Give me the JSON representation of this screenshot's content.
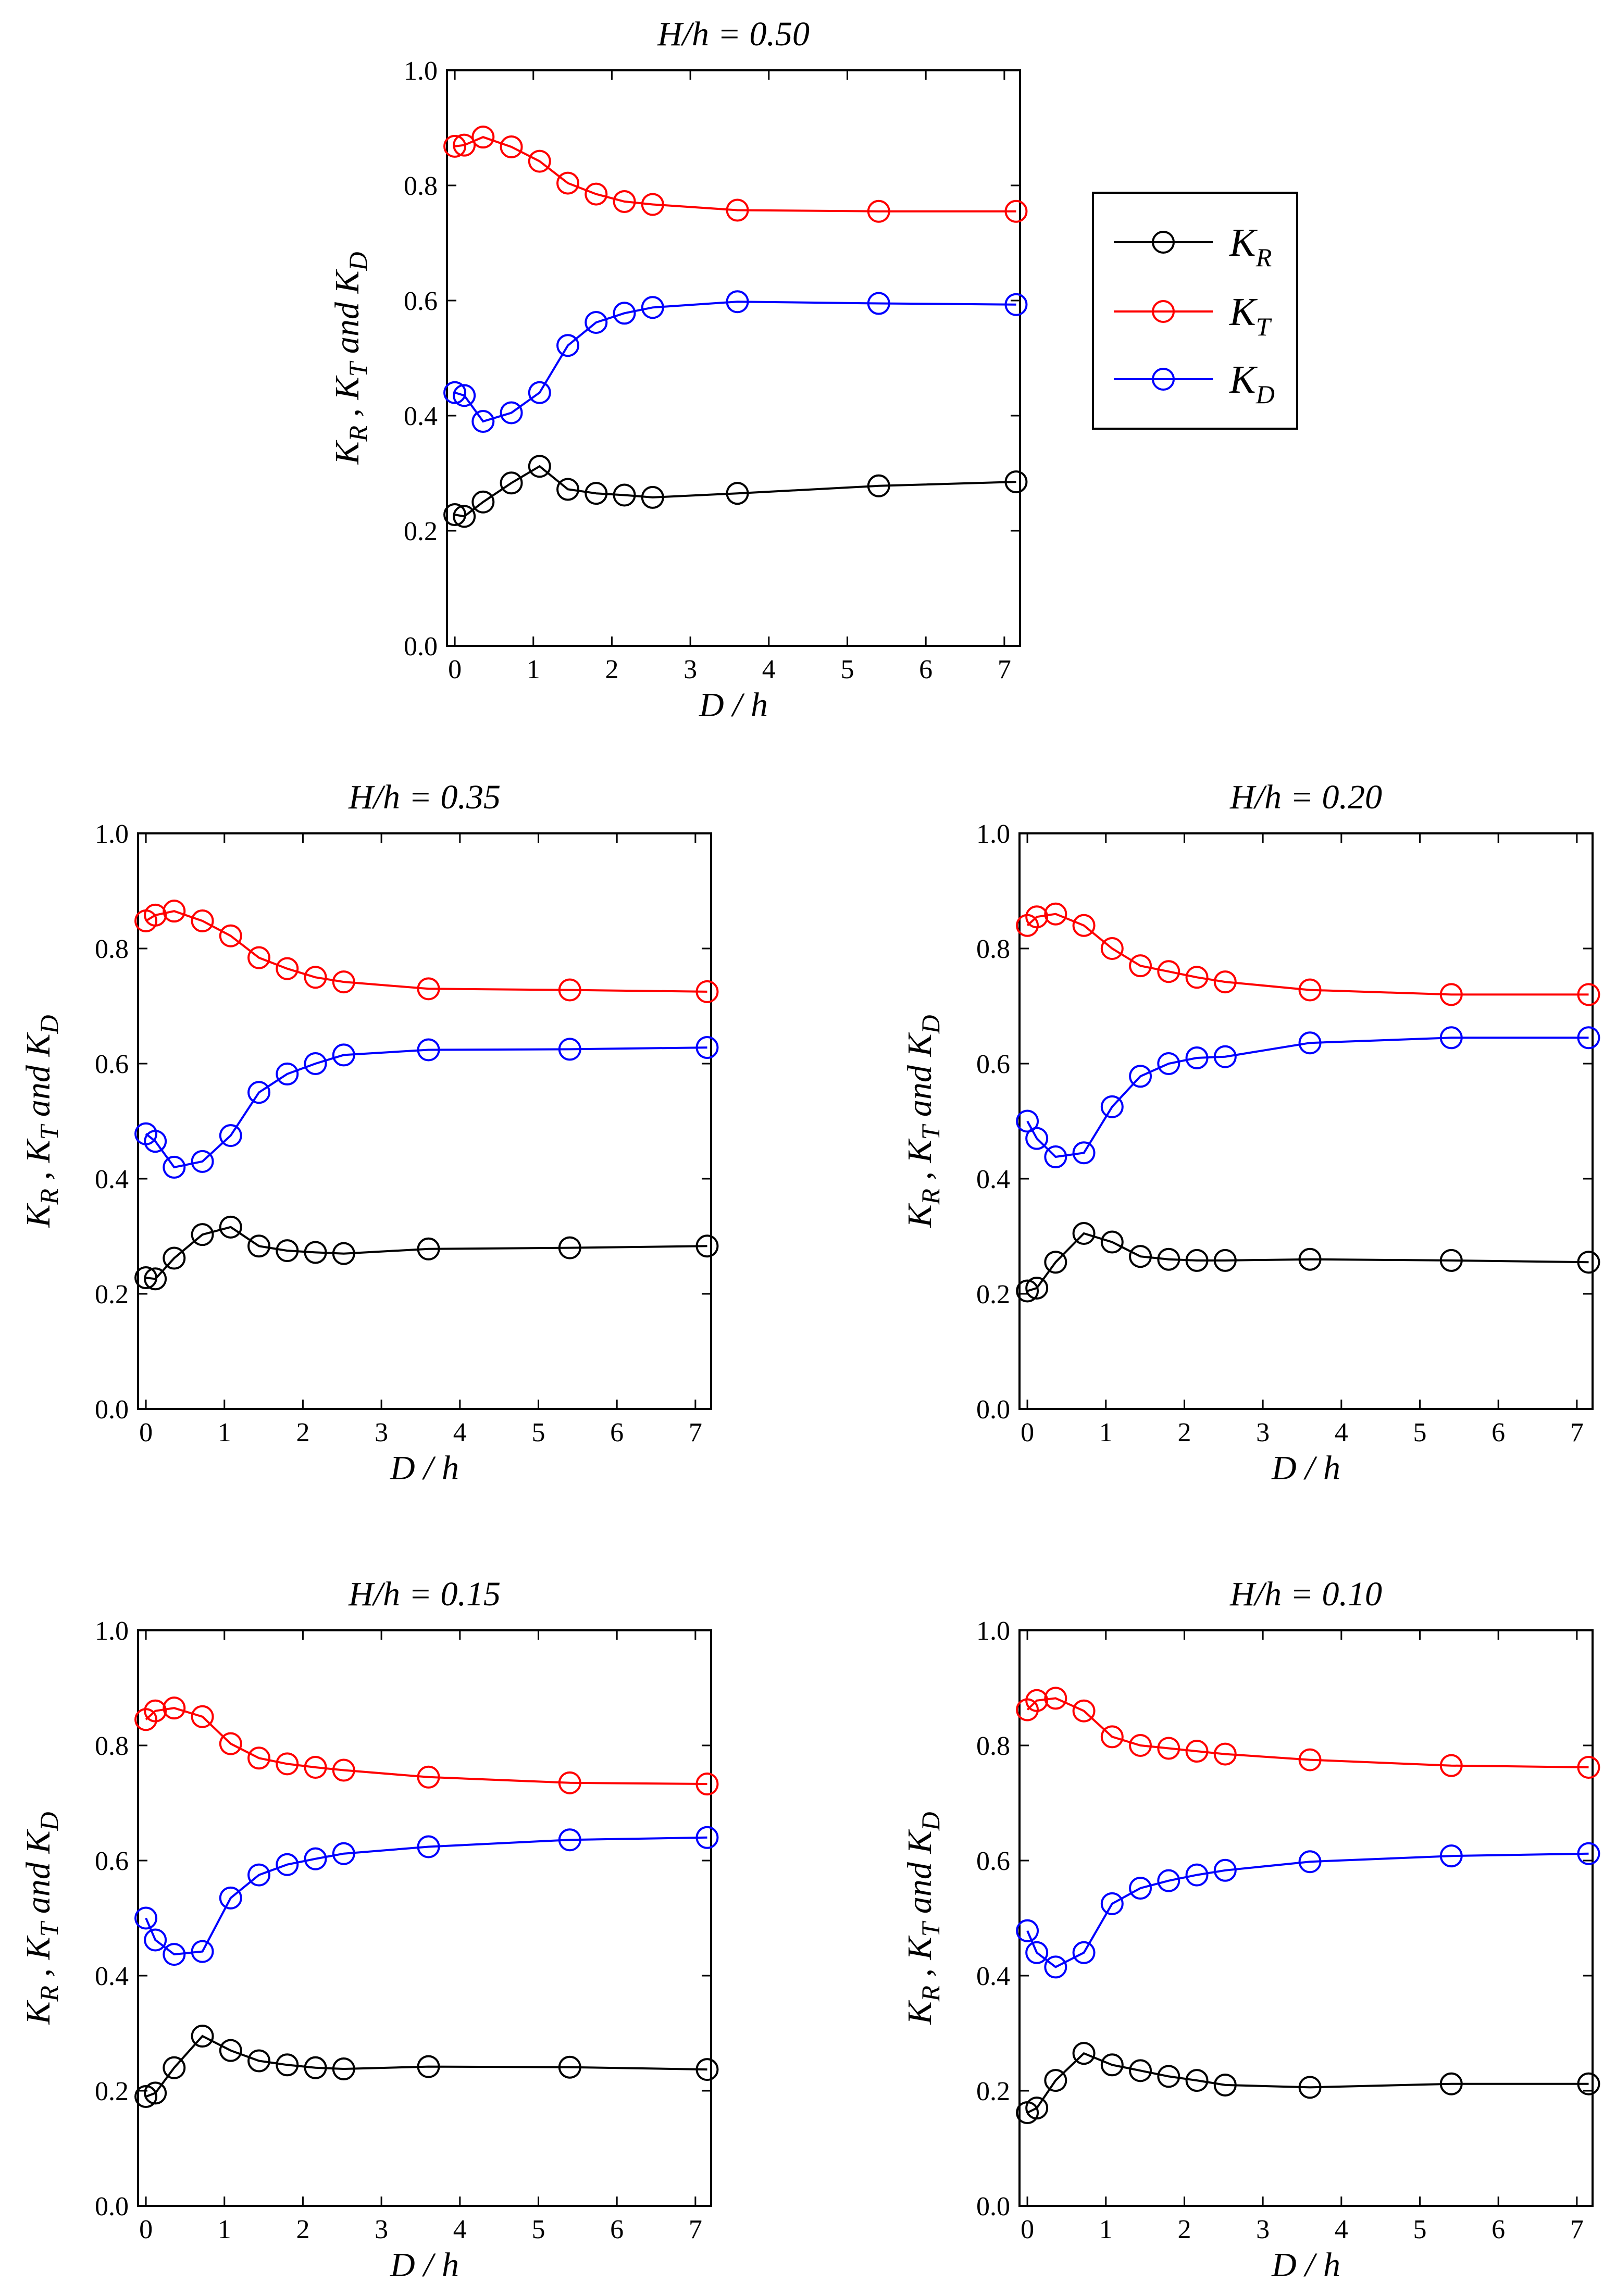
{
  "chart_data": [
    {
      "type": "line",
      "title": "H/h = 0.50",
      "xlabel": "D / h",
      "ylabel": "K_R , K_T and K_D",
      "xlim": [
        -0.1,
        7.2
      ],
      "ylim": [
        0,
        1
      ],
      "xticks": [
        0,
        1,
        2,
        3,
        4,
        5,
        6,
        7
      ],
      "yticks": [
        "0.0",
        "0.2",
        "0.4",
        "0.6",
        "0.8",
        "1.0"
      ],
      "x": [
        0,
        0.12,
        0.36,
        0.72,
        1.08,
        1.44,
        1.8,
        2.16,
        2.52,
        3.6,
        5.4,
        7.15
      ],
      "series": [
        {
          "name": "K_R",
          "color": "#000000",
          "values": [
            0.228,
            0.225,
            0.25,
            0.283,
            0.312,
            0.272,
            0.265,
            0.262,
            0.258,
            0.265,
            0.278,
            0.285
          ]
        },
        {
          "name": "K_T",
          "color": "#ff0000",
          "values": [
            0.868,
            0.87,
            0.884,
            0.867,
            0.842,
            0.804,
            0.785,
            0.772,
            0.767,
            0.757,
            0.755,
            0.755
          ]
        },
        {
          "name": "K_D",
          "color": "#0000ff",
          "values": [
            0.44,
            0.435,
            0.39,
            0.405,
            0.44,
            0.522,
            0.562,
            0.578,
            0.588,
            0.598,
            0.595,
            0.593
          ]
        }
      ]
    },
    {
      "type": "line",
      "title": "H/h = 0.35",
      "xlabel": "D / h",
      "ylabel": "K_R , K_T and K_D",
      "xlim": [
        -0.1,
        7.2
      ],
      "ylim": [
        0,
        1
      ],
      "xticks": [
        0,
        1,
        2,
        3,
        4,
        5,
        6,
        7
      ],
      "yticks": [
        "0.0",
        "0.2",
        "0.4",
        "0.6",
        "0.8",
        "1.0"
      ],
      "x": [
        0,
        0.12,
        0.36,
        0.72,
        1.08,
        1.44,
        1.8,
        2.16,
        2.52,
        3.6,
        5.4,
        7.15
      ],
      "series": [
        {
          "name": "K_R",
          "color": "#000000",
          "values": [
            0.228,
            0.226,
            0.262,
            0.303,
            0.316,
            0.283,
            0.275,
            0.272,
            0.27,
            0.278,
            0.28,
            0.283
          ]
        },
        {
          "name": "K_T",
          "color": "#ff0000",
          "values": [
            0.848,
            0.858,
            0.865,
            0.848,
            0.822,
            0.784,
            0.765,
            0.75,
            0.742,
            0.73,
            0.728,
            0.725
          ]
        },
        {
          "name": "K_D",
          "color": "#0000ff",
          "values": [
            0.478,
            0.465,
            0.42,
            0.43,
            0.475,
            0.55,
            0.582,
            0.6,
            0.615,
            0.624,
            0.625,
            0.628
          ]
        }
      ]
    },
    {
      "type": "line",
      "title": "H/h = 0.20",
      "xlabel": "D / h",
      "ylabel": "K_R , K_T and K_D",
      "xlim": [
        -0.1,
        7.2
      ],
      "ylim": [
        0,
        1
      ],
      "xticks": [
        0,
        1,
        2,
        3,
        4,
        5,
        6,
        7
      ],
      "yticks": [
        "0.0",
        "0.2",
        "0.4",
        "0.6",
        "0.8",
        "1.0"
      ],
      "x": [
        0,
        0.12,
        0.36,
        0.72,
        1.08,
        1.44,
        1.8,
        2.16,
        2.52,
        3.6,
        5.4,
        7.15
      ],
      "series": [
        {
          "name": "K_R",
          "color": "#000000",
          "values": [
            0.205,
            0.21,
            0.255,
            0.305,
            0.29,
            0.265,
            0.26,
            0.258,
            0.258,
            0.26,
            0.258,
            0.255
          ]
        },
        {
          "name": "K_T",
          "color": "#ff0000",
          "values": [
            0.84,
            0.855,
            0.86,
            0.84,
            0.8,
            0.77,
            0.76,
            0.75,
            0.742,
            0.728,
            0.72,
            0.72
          ]
        },
        {
          "name": "K_D",
          "color": "#0000ff",
          "values": [
            0.5,
            0.47,
            0.438,
            0.445,
            0.525,
            0.578,
            0.6,
            0.61,
            0.612,
            0.636,
            0.645,
            0.645
          ]
        }
      ]
    },
    {
      "type": "line",
      "title": "H/h = 0.15",
      "xlabel": "D / h",
      "ylabel": "K_R , K_T and K_D",
      "xlim": [
        -0.1,
        7.2
      ],
      "ylim": [
        0,
        1
      ],
      "xticks": [
        0,
        1,
        2,
        3,
        4,
        5,
        6,
        7
      ],
      "yticks": [
        "0.0",
        "0.2",
        "0.4",
        "0.6",
        "0.8",
        "1.0"
      ],
      "x": [
        0,
        0.12,
        0.36,
        0.72,
        1.08,
        1.44,
        1.8,
        2.16,
        2.52,
        3.6,
        5.4,
        7.15
      ],
      "series": [
        {
          "name": "K_R",
          "color": "#000000",
          "values": [
            0.19,
            0.196,
            0.24,
            0.295,
            0.27,
            0.252,
            0.245,
            0.24,
            0.238,
            0.242,
            0.241,
            0.237
          ]
        },
        {
          "name": "K_T",
          "color": "#ff0000",
          "values": [
            0.845,
            0.86,
            0.865,
            0.85,
            0.803,
            0.778,
            0.768,
            0.762,
            0.757,
            0.745,
            0.735,
            0.733
          ]
        },
        {
          "name": "K_D",
          "color": "#0000ff",
          "values": [
            0.5,
            0.462,
            0.437,
            0.442,
            0.535,
            0.575,
            0.593,
            0.603,
            0.612,
            0.624,
            0.636,
            0.64
          ]
        }
      ]
    },
    {
      "type": "line",
      "title": "H/h = 0.10",
      "xlabel": "D / h",
      "ylabel": "K_R , K_T and K_D",
      "xlim": [
        -0.1,
        7.2
      ],
      "ylim": [
        0,
        1
      ],
      "xticks": [
        0,
        1,
        2,
        3,
        4,
        5,
        6,
        7
      ],
      "yticks": [
        "0.0",
        "0.2",
        "0.4",
        "0.6",
        "0.8",
        "1.0"
      ],
      "x": [
        0,
        0.12,
        0.36,
        0.72,
        1.08,
        1.44,
        1.8,
        2.16,
        2.52,
        3.6,
        5.4,
        7.15
      ],
      "series": [
        {
          "name": "K_R",
          "color": "#000000",
          "values": [
            0.162,
            0.17,
            0.218,
            0.265,
            0.245,
            0.235,
            0.225,
            0.218,
            0.21,
            0.206,
            0.212,
            0.212
          ]
        },
        {
          "name": "K_T",
          "color": "#ff0000",
          "values": [
            0.862,
            0.878,
            0.882,
            0.86,
            0.815,
            0.8,
            0.795,
            0.79,
            0.785,
            0.775,
            0.765,
            0.762
          ]
        },
        {
          "name": "K_D",
          "color": "#0000ff",
          "values": [
            0.478,
            0.44,
            0.415,
            0.44,
            0.525,
            0.552,
            0.565,
            0.575,
            0.583,
            0.598,
            0.608,
            0.612
          ]
        }
      ]
    }
  ],
  "legend": {
    "entries": [
      {
        "base": "K",
        "sub": "R",
        "color": "#000000"
      },
      {
        "base": "K",
        "sub": "T",
        "color": "#ff0000"
      },
      {
        "base": "K",
        "sub": "D",
        "color": "#0000ff"
      }
    ]
  },
  "ylabel_parts": {
    "k": "K",
    "r": "R",
    "sep1": " , ",
    "t": "T",
    "and": " and ",
    "d": "D"
  }
}
